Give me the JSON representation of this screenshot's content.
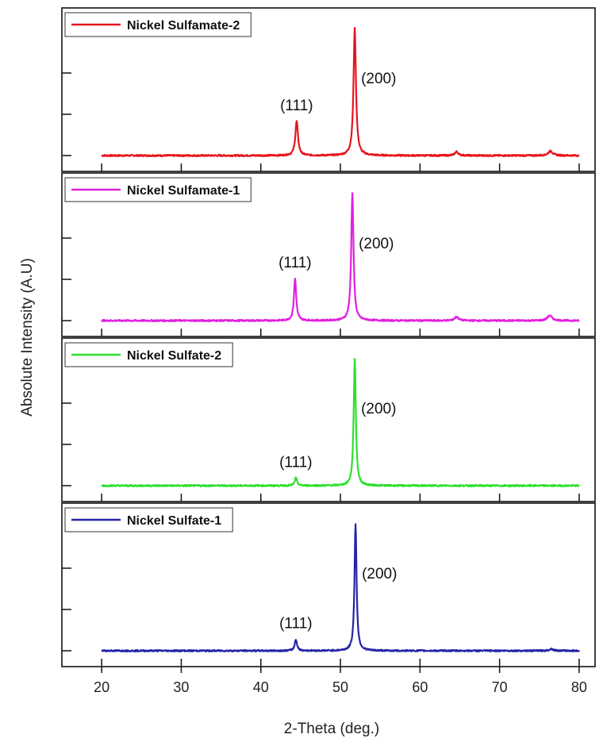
{
  "chart_data": {
    "type": "line",
    "xlabel": "2-Theta (deg.)",
    "ylabel": "Absolute Intensity (A.U)",
    "xlim": [
      15,
      82
    ],
    "xticks": [
      20,
      30,
      40,
      50,
      60,
      70,
      80
    ],
    "ylim": [
      0,
      1.15
    ],
    "grid": false,
    "legend_position": "top-left",
    "panels": [
      {
        "name": "Nickel Sulfamate-2",
        "color": "#e8141c",
        "peaks": [
          {
            "x": 44.5,
            "height": 0.27,
            "width": 0.35
          },
          {
            "x": 51.8,
            "height": 1.0,
            "width": 0.32
          },
          {
            "x": 64.6,
            "height": 0.03,
            "width": 0.45
          },
          {
            "x": 76.4,
            "height": 0.035,
            "width": 0.6
          }
        ],
        "annotations": [
          {
            "text": "(111)",
            "x": 44.5
          },
          {
            "text": "(200)",
            "x": 51.8
          }
        ]
      },
      {
        "name": "Nickel Sulfamate-1",
        "color": "#e020e0",
        "peaks": [
          {
            "x": 44.3,
            "height": 0.33,
            "width": 0.3
          },
          {
            "x": 51.5,
            "height": 1.0,
            "width": 0.3
          },
          {
            "x": 64.6,
            "height": 0.03,
            "width": 0.5
          },
          {
            "x": 76.3,
            "height": 0.04,
            "width": 0.6
          }
        ],
        "annotations": [
          {
            "text": "(111)",
            "x": 44.3
          },
          {
            "text": "(200)",
            "x": 51.5
          }
        ]
      },
      {
        "name": "Nickel Sulfate-2",
        "color": "#2ee02e",
        "peaks": [
          {
            "x": 44.4,
            "height": 0.06,
            "width": 0.3
          },
          {
            "x": 51.8,
            "height": 1.0,
            "width": 0.28
          }
        ],
        "annotations": [
          {
            "text": "(111)",
            "x": 44.4
          },
          {
            "text": "(200)",
            "x": 51.8
          }
        ]
      },
      {
        "name": "Nickel Sulfate-1",
        "color": "#2424a8",
        "peaks": [
          {
            "x": 44.4,
            "height": 0.09,
            "width": 0.3
          },
          {
            "x": 51.9,
            "height": 1.0,
            "width": 0.27
          },
          {
            "x": 76.5,
            "height": 0.015,
            "width": 0.5
          }
        ],
        "annotations": [
          {
            "text": "(111)",
            "x": 44.4
          },
          {
            "text": "(200)",
            "x": 51.9
          }
        ]
      }
    ]
  }
}
